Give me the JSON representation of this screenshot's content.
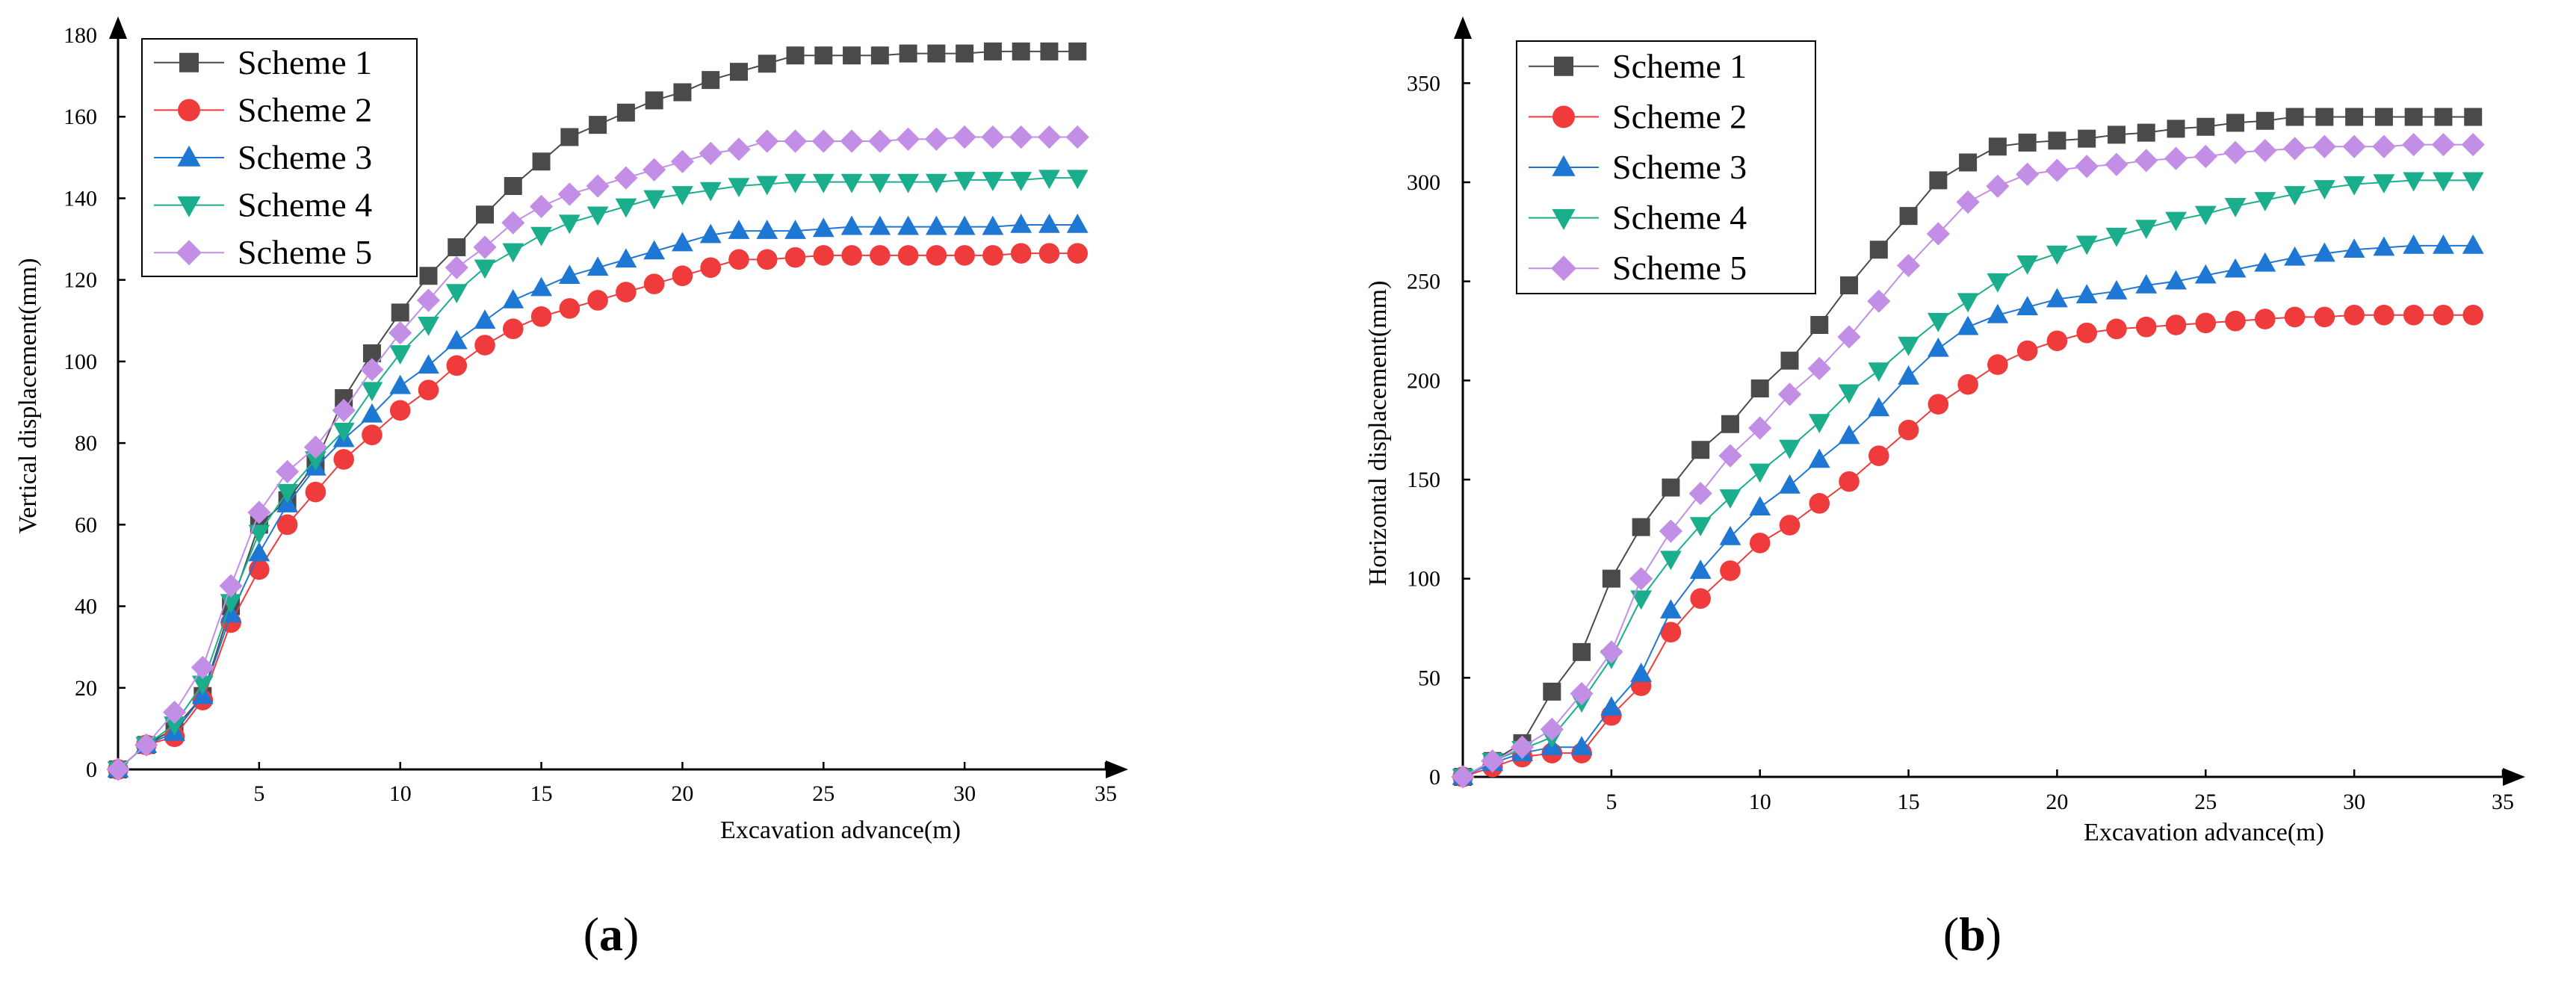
{
  "chart_data": [
    {
      "type": "line",
      "panel_label": "a",
      "xlabel": "Excavation advance(m)",
      "ylabel": "Vertical displacement(mm)",
      "xlim": [
        0,
        35
      ],
      "ylim": [
        0,
        180
      ],
      "xticks": [
        5,
        10,
        15,
        20,
        25,
        30,
        35
      ],
      "yticks": [
        0,
        20,
        40,
        60,
        80,
        100,
        120,
        140,
        160,
        180
      ],
      "x": [
        0,
        1,
        2,
        3,
        4,
        5,
        6,
        7,
        8,
        9,
        10,
        11,
        12,
        13,
        14,
        15,
        16,
        17,
        18,
        19,
        20,
        21,
        22,
        23,
        24,
        25,
        26,
        27,
        28,
        29,
        30,
        31,
        32,
        33,
        34
      ],
      "legend_position": "top-left",
      "grid": false,
      "series": [
        {
          "name": "Scheme 1",
          "color": "#4a4a4a",
          "marker": "square",
          "values": [
            0,
            6,
            10,
            18,
            40,
            60,
            66,
            75,
            91,
            102,
            112,
            121,
            128,
            136,
            143,
            149,
            155,
            158,
            161,
            164,
            166,
            169,
            171,
            173,
            175,
            175,
            175,
            175,
            175.5,
            175.5,
            175.5,
            176,
            176,
            176,
            176
          ]
        },
        {
          "name": "Scheme 2",
          "color": "#ef3b3b",
          "marker": "circle",
          "values": [
            0,
            6,
            8,
            17,
            36,
            49,
            60,
            68,
            76,
            82,
            88,
            93,
            99,
            104,
            108,
            111,
            113,
            115,
            117,
            119,
            121,
            123,
            125,
            125,
            125.5,
            126,
            126,
            126,
            126,
            126,
            126,
            126,
            126.5,
            126.5,
            126.5
          ]
        },
        {
          "name": "Scheme 3",
          "color": "#1f77d4",
          "marker": "triangle-up",
          "values": [
            0,
            6,
            9,
            18,
            38,
            53,
            65,
            74,
            81,
            87,
            94,
            99,
            105,
            110,
            115,
            118,
            121,
            123,
            125,
            127,
            129,
            131,
            132,
            132,
            132,
            132.5,
            133,
            133,
            133,
            133,
            133,
            133,
            133.5,
            133.5,
            133.5
          ]
        },
        {
          "name": "Scheme 4",
          "color": "#1aae8c",
          "marker": "triangle-down",
          "values": [
            0,
            6,
            11,
            21,
            41,
            58,
            68,
            76,
            83,
            93,
            102,
            109,
            117,
            123,
            127,
            131,
            134,
            136,
            138,
            140,
            141,
            142,
            143,
            143.5,
            144,
            144,
            144,
            144,
            144,
            144,
            144.5,
            144.5,
            144.5,
            145,
            145
          ]
        },
        {
          "name": "Scheme 5",
          "color": "#c28ee6",
          "marker": "diamond",
          "values": [
            0,
            6,
            14,
            25,
            45,
            63,
            73,
            79,
            88,
            98,
            107,
            115,
            123,
            128,
            134,
            138,
            141,
            143,
            145,
            147,
            149,
            151,
            152,
            154,
            154,
            154,
            154,
            154,
            154.5,
            154.5,
            155,
            155,
            155,
            155,
            155
          ]
        }
      ]
    },
    {
      "type": "line",
      "panel_label": "b",
      "xlabel": "Excavation advance(m)",
      "ylabel": "Horizontal displacement(mm)",
      "xlim": [
        0,
        35
      ],
      "ylim": [
        0,
        375
      ],
      "xticks": [
        5,
        10,
        15,
        20,
        25,
        30,
        35
      ],
      "yticks": [
        0,
        50,
        100,
        150,
        200,
        250,
        300,
        350
      ],
      "x": [
        0,
        1,
        2,
        3,
        4,
        5,
        6,
        7,
        8,
        9,
        10,
        11,
        12,
        13,
        14,
        15,
        16,
        17,
        18,
        19,
        20,
        21,
        22,
        23,
        24,
        25,
        26,
        27,
        28,
        29,
        30,
        31,
        32,
        33,
        34
      ],
      "legend_position": "top-left",
      "grid": false,
      "series": [
        {
          "name": "Scheme 1",
          "color": "#4a4a4a",
          "marker": "square",
          "values": [
            0,
            8,
            17,
            43,
            63,
            100,
            126,
            146,
            165,
            178,
            196,
            210,
            228,
            248,
            266,
            283,
            301,
            310,
            318,
            320,
            321,
            322,
            324,
            325,
            327,
            328,
            330,
            331,
            333,
            333,
            333,
            333,
            333,
            333,
            333
          ]
        },
        {
          "name": "Scheme 2",
          "color": "#ef3b3b",
          "marker": "circle",
          "values": [
            0,
            5,
            10,
            12,
            12,
            31,
            46,
            73,
            90,
            104,
            118,
            127,
            138,
            149,
            162,
            175,
            188,
            198,
            208,
            215,
            220,
            224,
            226,
            227,
            228,
            229,
            230,
            231,
            232,
            232,
            233,
            233,
            233,
            233,
            233
          ]
        },
        {
          "name": "Scheme 3",
          "color": "#1f77d4",
          "marker": "triangle-up",
          "values": [
            0,
            7,
            12,
            15,
            15,
            35,
            52,
            84,
            104,
            121,
            136,
            147,
            160,
            172,
            186,
            202,
            216,
            227,
            233,
            237,
            241,
            243,
            245,
            248,
            250,
            253,
            256,
            259,
            262,
            264,
            266,
            267,
            268,
            268,
            268
          ]
        },
        {
          "name": "Scheme 4",
          "color": "#1aae8c",
          "marker": "triangle-down",
          "values": [
            0,
            8,
            14,
            20,
            38,
            60,
            90,
            110,
            127,
            141,
            154,
            166,
            179,
            194,
            205,
            218,
            230,
            240,
            250,
            259,
            264,
            269,
            273,
            277,
            281,
            284,
            288,
            291,
            294,
            297,
            299,
            300,
            301,
            301,
            301
          ]
        },
        {
          "name": "Scheme 5",
          "color": "#c28ee6",
          "marker": "diamond",
          "values": [
            0,
            8,
            15,
            24,
            42,
            63,
            100,
            124,
            143,
            162,
            176,
            193,
            206,
            222,
            240,
            258,
            274,
            290,
            298,
            304,
            306,
            308,
            309,
            311,
            312,
            313,
            315,
            316,
            317,
            318,
            318,
            318,
            319,
            319,
            319
          ]
        }
      ]
    }
  ]
}
